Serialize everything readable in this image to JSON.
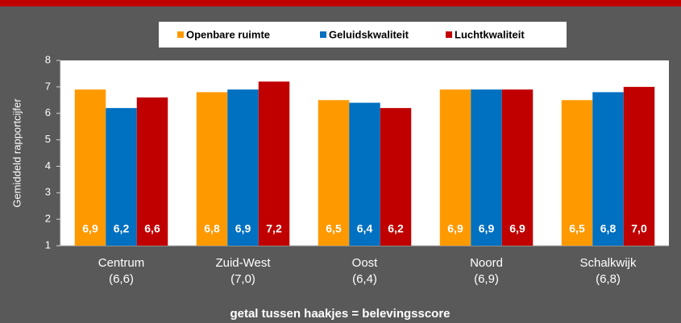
{
  "chart_data": {
    "type": "bar",
    "ylabel": "Gemiddeld rapportcijfer",
    "footnote": "getal tussen haakjes = belevingsscore",
    "categories": [
      "Centrum",
      "Zuid-West",
      "Oost",
      "Noord",
      "Schalkwijk"
    ],
    "score_labels": [
      "(6,6)",
      "(7,0)",
      "(6,4)",
      "(6,9)",
      "(6,8)"
    ],
    "series": [
      {
        "name": "Openbare ruimte",
        "color": "#ff9900",
        "values": [
          6.9,
          6.8,
          6.5,
          6.9,
          6.5
        ],
        "value_labels": [
          "6,9",
          "6,8",
          "6,5",
          "6,9",
          "6,5"
        ]
      },
      {
        "name": "Geluidskwaliteit",
        "color": "#0070c0",
        "values": [
          6.2,
          6.9,
          6.4,
          6.9,
          6.8
        ],
        "value_labels": [
          "6,2",
          "6,9",
          "6,4",
          "6,9",
          "6,8"
        ]
      },
      {
        "name": "Luchtkwaliteit",
        "color": "#c00000",
        "values": [
          6.6,
          7.2,
          6.2,
          6.9,
          7.0
        ],
        "value_labels": [
          "6,6",
          "7,2",
          "6,2",
          "6,9",
          "7,0"
        ]
      }
    ],
    "ylim": [
      1,
      8
    ],
    "yticks": [
      1,
      2,
      3,
      4,
      5,
      6,
      7,
      8
    ],
    "grid": false
  }
}
